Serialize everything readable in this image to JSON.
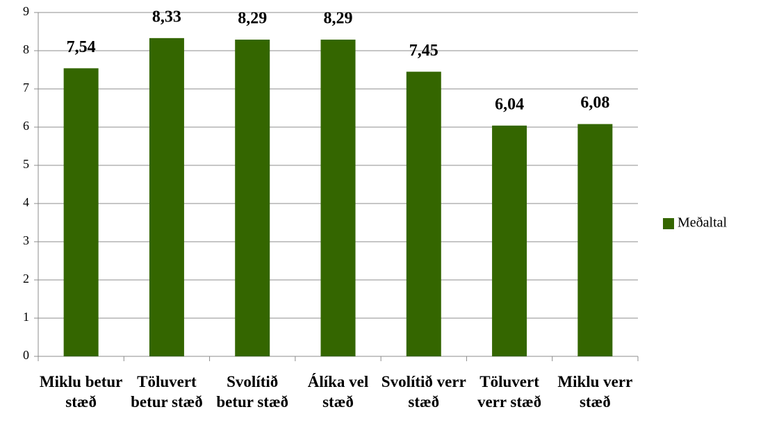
{
  "chart_data": {
    "type": "bar",
    "categories": [
      "Miklu betur stæð",
      "Töluvert betur stæð",
      "Svolítið betur stæð",
      "Álíka vel stæð",
      "Svolítið verr stæð",
      "Töluvert verr stæð",
      "Miklu verr stæð"
    ],
    "series": [
      {
        "name": "Meðaltal",
        "color": "#346600",
        "values": [
          7.54,
          8.33,
          8.29,
          8.29,
          7.45,
          6.04,
          6.08
        ],
        "value_labels": [
          "7,54",
          "8,33",
          "8,29",
          "8,29",
          "7,45",
          "6,04",
          "6,08"
        ]
      }
    ],
    "ylim": [
      0,
      9
    ],
    "yticks": [
      0,
      1,
      2,
      3,
      4,
      5,
      6,
      7,
      8,
      9
    ],
    "grid": true,
    "legend": "right"
  }
}
